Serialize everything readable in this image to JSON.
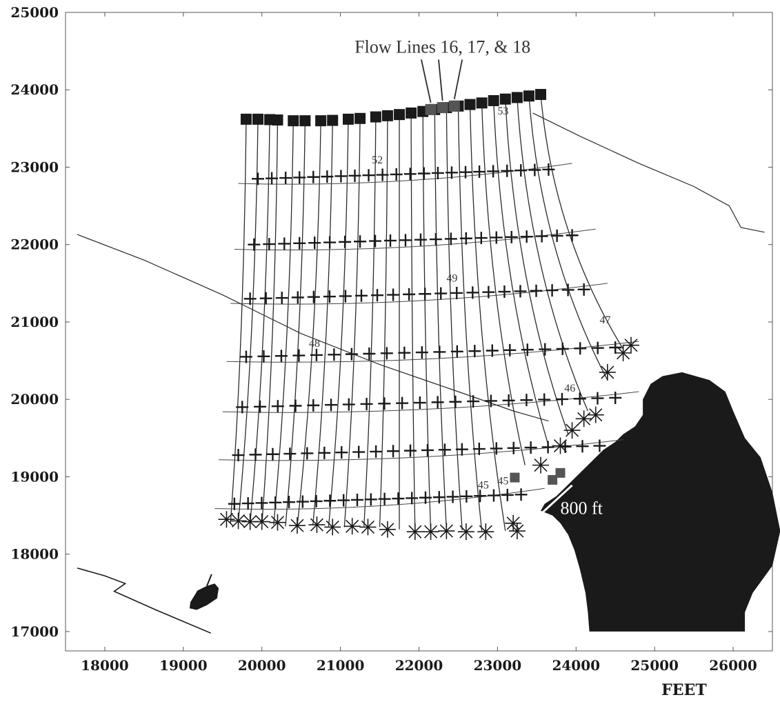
{
  "chart_data": {
    "type": "line",
    "title": "",
    "xlabel": "FEET",
    "ylabel": "",
    "xlim": [
      17500,
      26500
    ],
    "ylim": [
      16750,
      25000
    ],
    "grid": false,
    "x_ticks": [
      18000,
      19000,
      20000,
      21000,
      22000,
      23000,
      24000,
      25000,
      26000
    ],
    "y_ticks": [
      17000,
      18000,
      19000,
      20000,
      21000,
      22000,
      23000,
      24000,
      25000
    ],
    "x_tick_labels": [
      "18000",
      "19000",
      "20000",
      "21000",
      "22000",
      "23000",
      "24000",
      "25000",
      "26000"
    ],
    "y_tick_labels": [
      "17000",
      "18000",
      "19000",
      "20000",
      "21000",
      "22000",
      "23000",
      "24000",
      "25000"
    ],
    "colors": {
      "ink": "#1a1a1a",
      "lines": "#2a2a2a",
      "grey_marker": "#555555",
      "background": "#ffffff"
    },
    "annotations": [
      {
        "name": "flow-lines-label",
        "text": "Flow Lines 16, 17, & 18",
        "x": 22300,
        "y": 24480
      },
      {
        "name": "distance-label",
        "text": "800 ft",
        "x": 23800,
        "y": 18520
      }
    ],
    "contour_labels": [
      {
        "text": "53",
        "x": 23000,
        "y": 23680
      },
      {
        "text": "52",
        "x": 21400,
        "y": 23050
      },
      {
        "text": "49",
        "x": 22350,
        "y": 21520
      },
      {
        "text": "48",
        "x": 20600,
        "y": 20680
      },
      {
        "text": "47",
        "x": 24300,
        "y": 20980
      },
      {
        "text": "46",
        "x": 23850,
        "y": 20100
      },
      {
        "text": "45",
        "x": 22750,
        "y": 18850
      },
      {
        "text": "45",
        "x": 23000,
        "y": 18900
      }
    ],
    "distance_line": {
      "x1": 23950,
      "y1": 18890,
      "x2": 23510,
      "y2": 18480
    },
    "extraction_wells_x": [
      19800,
      19950,
      20100,
      20200,
      20400,
      20550,
      20750,
      20900,
      21100,
      21250,
      21450,
      21600,
      21750,
      21900,
      22050,
      22200,
      22350,
      22500,
      22650,
      22800,
      22950,
      23100,
      23250,
      23400,
      23550
    ],
    "extraction_wells_y": [
      23620,
      23620,
      23615,
      23610,
      23600,
      23600,
      23600,
      23605,
      23620,
      23630,
      23650,
      23665,
      23680,
      23700,
      23720,
      23745,
      23770,
      23790,
      23810,
      23830,
      23860,
      23880,
      23900,
      23920,
      23940
    ],
    "highlighted_wells_x": [
      22150,
      22300,
      22450
    ],
    "highlighted_wells_y": [
      23745,
      23770,
      23790
    ],
    "flow_line_ends_x": [
      19600,
      19700,
      19850,
      20000,
      20150,
      20300,
      20450,
      20650,
      20850,
      21050,
      21300,
      21500,
      21750,
      21950,
      22150,
      22350,
      22550,
      22800,
      23100,
      23350,
      23650,
      23900,
      24150,
      24400,
      24600
    ],
    "flow_line_ends_y": [
      18400,
      18420,
      18400,
      18380,
      18380,
      18360,
      18360,
      18380,
      18360,
      18350,
      18360,
      18350,
      18320,
      18300,
      18300,
      18320,
      18310,
      18300,
      18300,
      19150,
      19400,
      19550,
      19850,
      20250,
      20650
    ],
    "star_markers": [
      [
        19550,
        18450
      ],
      [
        19700,
        18430
      ],
      [
        19850,
        18420
      ],
      [
        20000,
        18420
      ],
      [
        20200,
        18410
      ],
      [
        20450,
        18370
      ],
      [
        20700,
        18380
      ],
      [
        20900,
        18350
      ],
      [
        21150,
        18360
      ],
      [
        21350,
        18350
      ],
      [
        21600,
        18320
      ],
      [
        21950,
        18290
      ],
      [
        22150,
        18290
      ],
      [
        22350,
        18300
      ],
      [
        22600,
        18290
      ],
      [
        22850,
        18290
      ],
      [
        23250,
        18300
      ],
      [
        23200,
        18400
      ],
      [
        23550,
        19150
      ],
      [
        23800,
        19400
      ],
      [
        23950,
        19600
      ],
      [
        24100,
        19750
      ],
      [
        24250,
        19800
      ],
      [
        24400,
        20350
      ],
      [
        24600,
        20600
      ],
      [
        24700,
        20700
      ]
    ],
    "well_markers": [
      [
        23220,
        18990
      ],
      [
        23700,
        18960
      ],
      [
        23800,
        19050
      ]
    ],
    "cross_rows_y": [
      22850,
      22000,
      21300,
      20550,
      19900,
      19280,
      18650
    ],
    "cross_rows_x_start": [
      19950,
      19900,
      19850,
      19800,
      19750,
      19700,
      19650
    ],
    "cross_rows_x_end": [
      23650,
      23950,
      24100,
      24500,
      24500,
      24300,
      23300
    ],
    "boundary_line_left": [
      [
        17650,
        22130
      ],
      [
        18500,
        21800
      ],
      [
        19500,
        21350
      ],
      [
        20500,
        20850
      ],
      [
        21500,
        20450
      ],
      [
        22500,
        20100
      ],
      [
        23200,
        19850
      ],
      [
        23650,
        19720
      ]
    ],
    "boundary_line_right": [
      [
        23450,
        23700
      ],
      [
        24050,
        23400
      ],
      [
        24800,
        23050
      ],
      [
        25500,
        22750
      ],
      [
        25950,
        22500
      ],
      [
        26100,
        22220
      ],
      [
        26400,
        22160
      ]
    ],
    "polyline_bottom_left": [
      [
        17650,
        17820
      ],
      [
        18000,
        17720
      ],
      [
        18260,
        17620
      ],
      [
        18120,
        17520
      ],
      [
        18650,
        17280
      ],
      [
        19350,
        16980
      ]
    ],
    "island": [
      [
        19090,
        17380
      ],
      [
        19180,
        17530
      ],
      [
        19300,
        17590
      ],
      [
        19400,
        17620
      ],
      [
        19450,
        17560
      ],
      [
        19430,
        17430
      ],
      [
        19300,
        17340
      ],
      [
        19170,
        17280
      ],
      [
        19080,
        17300
      ]
    ],
    "island_spike": [
      [
        19300,
        17590
      ],
      [
        19360,
        17740
      ]
    ],
    "dark_body": [
      [
        23550,
        18560
      ],
      [
        23700,
        18500
      ],
      [
        23800,
        18400
      ],
      [
        23900,
        18250
      ],
      [
        23980,
        18050
      ],
      [
        24050,
        17800
      ],
      [
        24120,
        17500
      ],
      [
        24150,
        17250
      ],
      [
        24170,
        17000
      ],
      [
        26150,
        17000
      ],
      [
        26150,
        17250
      ],
      [
        26250,
        17500
      ],
      [
        26500,
        17850
      ],
      [
        26600,
        18300
      ],
      [
        26500,
        18800
      ],
      [
        26350,
        19250
      ],
      [
        26150,
        19500
      ],
      [
        26000,
        19850
      ],
      [
        25900,
        20100
      ],
      [
        25700,
        20250
      ],
      [
        25350,
        20350
      ],
      [
        25100,
        20300
      ],
      [
        24950,
        20200
      ],
      [
        24850,
        20000
      ],
      [
        24850,
        19800
      ],
      [
        24750,
        19650
      ],
      [
        24600,
        19550
      ],
      [
        24500,
        19450
      ],
      [
        24350,
        19350
      ],
      [
        24250,
        19250
      ],
      [
        24100,
        19100
      ],
      [
        23900,
        18900
      ],
      [
        23750,
        18750
      ],
      [
        23600,
        18650
      ]
    ]
  }
}
